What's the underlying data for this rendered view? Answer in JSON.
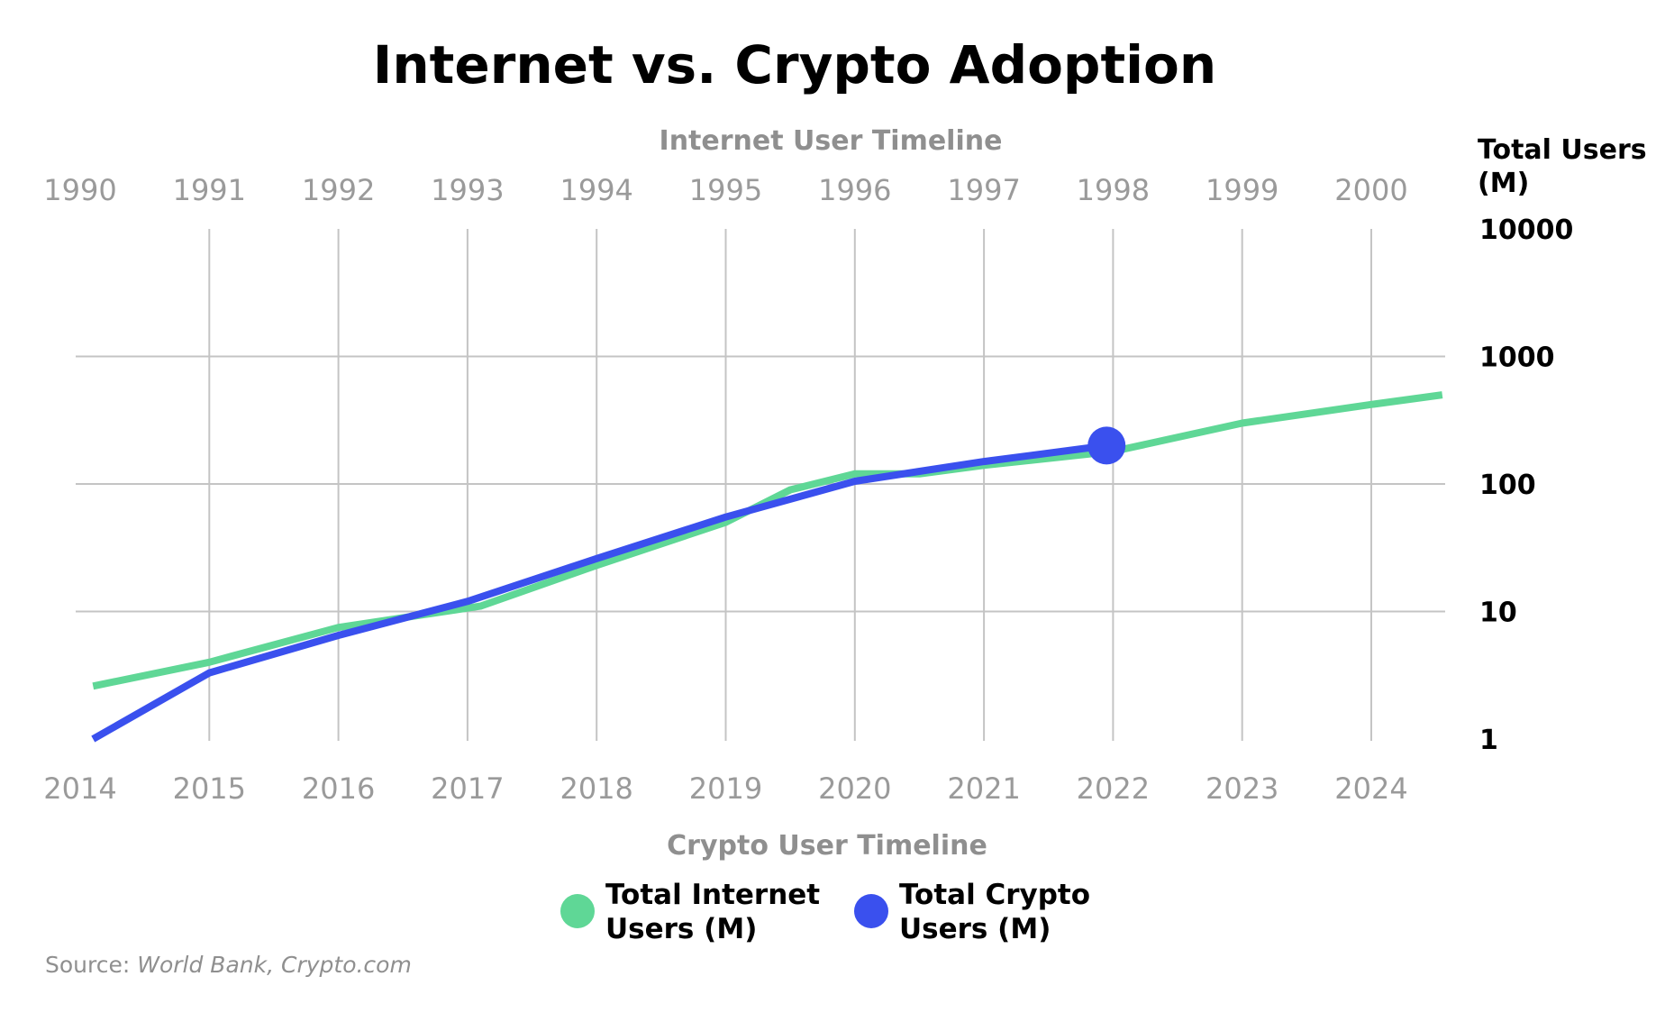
{
  "chart_data": {
    "type": "line",
    "title": "Internet vs. Crypto Adoption",
    "top_axis_title": "Internet User Timeline",
    "top_axis_ticks": [
      "1990",
      "1991",
      "1992",
      "1993",
      "1994",
      "1995",
      "1996",
      "1997",
      "1998",
      "1999",
      "2000"
    ],
    "bottom_axis_title": "Crypto User Timeline",
    "bottom_axis_ticks": [
      "2014",
      "2015",
      "2016",
      "2017",
      "2018",
      "2019",
      "2020",
      "2021",
      "2022",
      "2023",
      "2024"
    ],
    "ylabel_lines": [
      "Total Users",
      "(M)"
    ],
    "yscale": "log",
    "ylim": [
      1,
      10000
    ],
    "yticks": [
      "10000",
      "1000",
      "100",
      "10",
      "1"
    ],
    "grid": true,
    "legend_position": "bottom-center",
    "series": [
      {
        "name_lines": [
          "Total Internet",
          "Users (M)"
        ],
        "color": "#5fd796",
        "axis": "top",
        "x": [
          1990.1,
          1991,
          1992,
          1993.1,
          1994,
          1995,
          1995.5,
          1996,
          1996.5,
          1997,
          1998,
          1999,
          2000,
          2000.55
        ],
        "values": [
          2.6,
          4,
          7.5,
          11,
          23,
          50,
          90,
          120,
          120,
          140,
          180,
          300,
          420,
          500
        ]
      },
      {
        "name_lines": [
          "Total Crypto",
          "Users (M)"
        ],
        "color": "#3a50ee",
        "axis": "bottom",
        "x": [
          2014.1,
          2015,
          2016,
          2017,
          2018,
          2019,
          2020,
          2021,
          2021.95
        ],
        "values": [
          1,
          3.3,
          6.5,
          12,
          26,
          55,
          105,
          150,
          200
        ],
        "end_marker": true
      }
    ],
    "source_label": "Source:",
    "source_text": "World Bank, Crypto.com"
  }
}
